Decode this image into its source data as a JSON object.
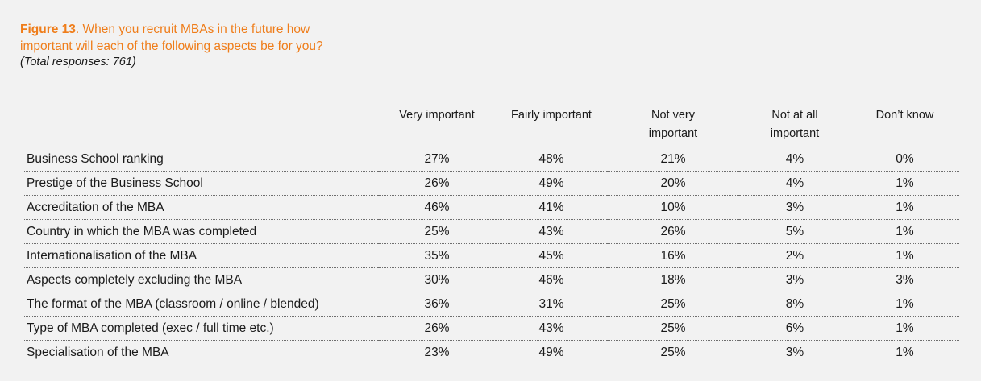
{
  "figure": {
    "label": "Figure 13",
    "title_line1": ". When you recruit MBAs in the future how",
    "title_line2": "important will each of the following aspects be for you?",
    "subtitle": "(Total responses: 761)"
  },
  "colors": {
    "accent": "#ef7d1a",
    "background": "#f2f2f2",
    "text": "#1a1a1a"
  },
  "table": {
    "columns": [
      {
        "line1": "Very important",
        "line2": ""
      },
      {
        "line1": "Fairly important",
        "line2": ""
      },
      {
        "line1": "Not very",
        "line2": "important"
      },
      {
        "line1": "Not at all",
        "line2": "important"
      },
      {
        "line1": "Don’t know",
        "line2": ""
      }
    ],
    "rows": [
      {
        "label": "Business School ranking",
        "values": [
          "27%",
          "48%",
          "21%",
          "4%",
          "0%"
        ]
      },
      {
        "label": "Prestige of the Business School",
        "values": [
          "26%",
          "49%",
          "20%",
          "4%",
          "1%"
        ]
      },
      {
        "label": "Accreditation of the MBA",
        "values": [
          "46%",
          "41%",
          "10%",
          "3%",
          "1%"
        ]
      },
      {
        "label": "Country in which the MBA was completed",
        "values": [
          "25%",
          "43%",
          "26%",
          "5%",
          "1%"
        ]
      },
      {
        "label": "Internationalisation of the MBA",
        "values": [
          "35%",
          "45%",
          "16%",
          "2%",
          "1%"
        ]
      },
      {
        "label": "Aspects completely excluding the MBA",
        "values": [
          "30%",
          "46%",
          "18%",
          "3%",
          "3%"
        ]
      },
      {
        "label": "The format of the MBA (classroom / online / blended)",
        "values": [
          "36%",
          "31%",
          "25%",
          "8%",
          "1%"
        ]
      },
      {
        "label": "Type of MBA completed (exec / full time etc.)",
        "values": [
          "26%",
          "43%",
          "25%",
          "6%",
          "1%"
        ]
      },
      {
        "label": "Specialisation of the MBA",
        "values": [
          "23%",
          "49%",
          "25%",
          "3%",
          "1%"
        ]
      }
    ]
  }
}
